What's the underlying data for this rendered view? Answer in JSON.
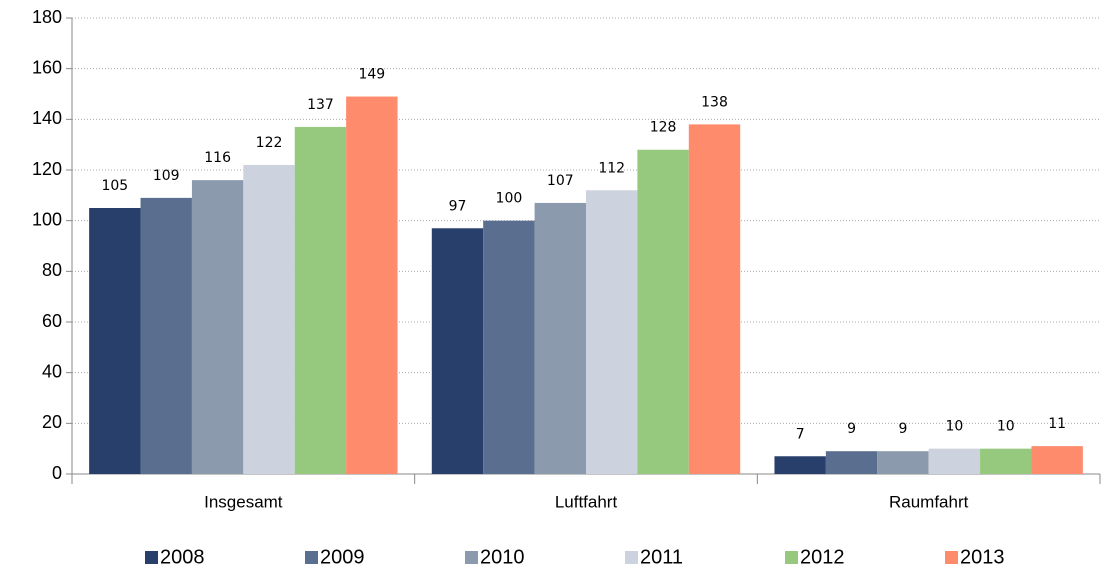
{
  "chart_data": {
    "type": "bar",
    "categories": [
      "Insgesamt",
      "Luftfahrt",
      "Raumfahrt"
    ],
    "series": [
      {
        "name": "2008",
        "color": "#283f6b",
        "values": [
          105,
          97,
          7
        ]
      },
      {
        "name": "2009",
        "color": "#5a6e8f",
        "values": [
          109,
          100,
          9
        ]
      },
      {
        "name": "2010",
        "color": "#8c9aae",
        "values": [
          116,
          107,
          9
        ]
      },
      {
        "name": "2011",
        "color": "#cdd3de",
        "values": [
          122,
          112,
          10
        ]
      },
      {
        "name": "2012",
        "color": "#96c97e",
        "values": [
          137,
          128,
          10
        ]
      },
      {
        "name": "2013",
        "color": "#fd8b6c",
        "values": [
          149,
          138,
          11
        ]
      }
    ],
    "ylim": [
      0,
      180
    ],
    "yticks": [
      0,
      20,
      40,
      60,
      80,
      100,
      120,
      140,
      160,
      180
    ],
    "grid": true,
    "legend": "bottom"
  }
}
